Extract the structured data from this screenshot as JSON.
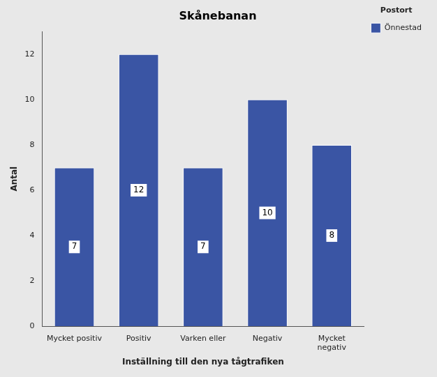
{
  "chart_data": {
    "type": "bar",
    "title": "Skånebanan",
    "x_label": "Inställning till den nya tågtrafiken",
    "y_label": "Antal",
    "categories": [
      "Mycket positiv",
      "Positiv",
      "Varken eller",
      "Negativ",
      "Mycket\nnegativ"
    ],
    "series": [
      {
        "name": "Önnestad",
        "color": "#3A55A4",
        "values": [
          7,
          12,
          7,
          10,
          8
        ]
      }
    ],
    "legend_title": "Postort",
    "legend": "right",
    "ylim": [
      0,
      13
    ],
    "yticks": [
      0,
      2,
      4,
      6,
      8,
      10,
      12
    ],
    "grid": false,
    "data_labels": true
  }
}
